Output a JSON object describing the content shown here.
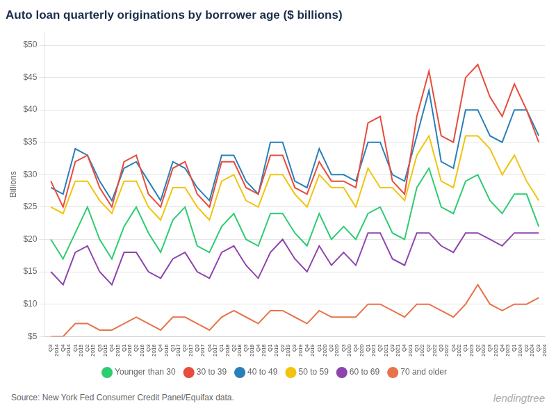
{
  "chart_data": {
    "type": "line",
    "title": "Auto loan quarterly originations by borrower age ($ billions)",
    "ylabel": "Billions",
    "annotations": [
      "Source: New York Fed Consumer Credit Panel/Equifax data.",
      "lendingtree"
    ],
    "categories": [
      "Q3\n2014",
      "Q4\n2014",
      "Q1\n2015",
      "Q2\n2015",
      "Q3\n2015",
      "Q4\n2015",
      "Q1\n2016",
      "Q2\n2016",
      "Q3\n2016",
      "Q4\n2016",
      "Q1\n2017",
      "Q2\n2017",
      "Q3\n2017",
      "Q4\n2017",
      "Q1\n2018",
      "Q2\n2018",
      "Q3\n2018",
      "Q4\n2018",
      "Q1\n2019",
      "Q2\n2019",
      "Q3\n2019",
      "Q4\n2019",
      "Q1\n2020",
      "Q2\n2020",
      "Q3\n2020",
      "Q4\n2020",
      "Q1\n2021",
      "Q2\n2021",
      "Q3\n2021",
      "Q4\n2021",
      "Q1\n2022",
      "Q2\n2022",
      "Q3\n2022",
      "Q4\n2022",
      "Q1\n2023",
      "Q2\n2023",
      "Q3\n2023",
      "Q4\n2023",
      "Q1\n2024",
      "Q2\n2024",
      "Q3\n2024"
    ],
    "series": [
      {
        "name": "Younger than 30",
        "color": "#2ecc71",
        "values": [
          20,
          17,
          21,
          25,
          20,
          17,
          22,
          25,
          21,
          18,
          23,
          25,
          19,
          18,
          22,
          24,
          20,
          19,
          24,
          24,
          21,
          19,
          24,
          20,
          22,
          20,
          24,
          25,
          21,
          20,
          28,
          31,
          25,
          24,
          29,
          30,
          26,
          24,
          27,
          27,
          22
        ]
      },
      {
        "name": "30 to 39",
        "color": "#e74c3c",
        "values": [
          29,
          25,
          32,
          33,
          28,
          25,
          32,
          33,
          27,
          25,
          31,
          32,
          27,
          25,
          32,
          32,
          28,
          27,
          33,
          33,
          28,
          27,
          32,
          29,
          29,
          28,
          38,
          39,
          29,
          27,
          39,
          46,
          36,
          35,
          45,
          47,
          42,
          39,
          44,
          40,
          35
        ]
      },
      {
        "name": "40 to 49",
        "color": "#2980b9",
        "values": [
          28,
          27,
          34,
          33,
          29,
          26,
          31,
          32,
          29,
          26,
          32,
          31,
          28,
          26,
          33,
          33,
          29,
          27,
          35,
          35,
          29,
          28,
          34,
          30,
          30,
          29,
          35,
          35,
          30,
          29,
          36,
          43,
          32,
          31,
          40,
          40,
          36,
          35,
          40,
          40,
          36
        ]
      },
      {
        "name": "50 to 59",
        "color": "#f1c40f",
        "values": [
          25,
          24,
          29,
          29,
          26,
          24,
          29,
          29,
          25,
          23,
          28,
          28,
          25,
          23,
          29,
          30,
          26,
          25,
          30,
          30,
          27,
          25,
          30,
          28,
          28,
          25,
          31,
          28,
          28,
          26,
          33,
          36,
          29,
          28,
          36,
          36,
          34,
          30,
          33,
          29,
          26
        ]
      },
      {
        "name": "60 to 69",
        "color": "#8e44ad",
        "values": [
          15,
          13,
          18,
          19,
          15,
          13,
          18,
          18,
          15,
          14,
          17,
          18,
          15,
          14,
          18,
          19,
          16,
          14,
          18,
          20,
          17,
          15,
          19,
          16,
          18,
          16,
          21,
          21,
          17,
          16,
          21,
          21,
          19,
          18,
          21,
          21,
          20,
          19,
          21,
          21,
          21
        ]
      },
      {
        "name": "70 and older",
        "color": "#e8734a",
        "values": [
          5,
          5,
          7,
          7,
          6,
          6,
          7,
          8,
          7,
          6,
          8,
          8,
          7,
          6,
          8,
          9,
          8,
          7,
          9,
          9,
          8,
          7,
          9,
          8,
          8,
          8,
          10,
          10,
          9,
          8,
          10,
          10,
          9,
          8,
          10,
          13,
          10,
          9,
          10,
          10,
          11
        ]
      }
    ],
    "ylim": [
      5,
      52
    ],
    "yticks": [
      {
        "value": 5,
        "label": "$5"
      },
      {
        "value": 10,
        "label": "$10"
      },
      {
        "value": 15,
        "label": "$15"
      },
      {
        "value": 20,
        "label": "$20"
      },
      {
        "value": 25,
        "label": "$25"
      },
      {
        "value": 30,
        "label": "$30"
      },
      {
        "value": 35,
        "label": "$35"
      },
      {
        "value": 40,
        "label": "$40"
      },
      {
        "value": 45,
        "label": "$45"
      },
      {
        "value": 50,
        "label": "$50"
      }
    ],
    "grid": true,
    "legend": "bottom"
  }
}
